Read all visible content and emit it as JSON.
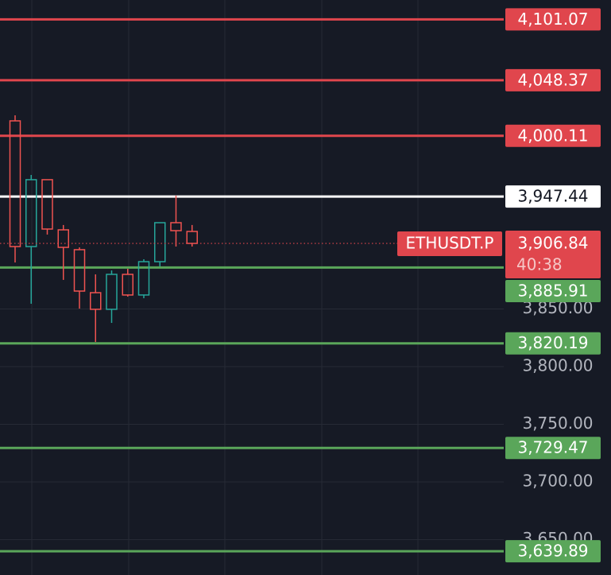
{
  "chart_data": {
    "type": "candlestick",
    "ylim": [
      3619.3,
      4117.9
    ],
    "yticks": [
      {
        "value": 3850,
        "label": "3,850.00"
      },
      {
        "value": 3800,
        "label": "3,800.00"
      },
      {
        "value": 3750,
        "label": "3,750.00"
      },
      {
        "value": 3700,
        "label": "3,700.00"
      },
      {
        "value": 3650,
        "label": "3,650.00"
      }
    ],
    "grid": true,
    "up_color": "#26a69a",
    "down_color": "#ef5350",
    "open": [
      4013.1,
      3904.1,
      3962.1,
      3918.6,
      3901.4,
      3864.1,
      3849.7,
      3880.0,
      3862.1,
      3891.0,
      3924.8,
      3917.2
    ],
    "high": [
      4017.9,
      3966.2,
      3962.1,
      3922.8,
      3903.4,
      3880.0,
      3883.4,
      3884.8,
      3893.1,
      3924.8,
      3948.3,
      3922.8
    ],
    "low": [
      3890.3,
      3854.5,
      3914.5,
      3875.2,
      3850.3,
      3821.4,
      3837.9,
      3860.7,
      3859.3,
      3886.9,
      3904.1,
      3904.1
    ],
    "close": [
      3904.1,
      3962.1,
      3919.3,
      3903.4,
      3865.5,
      3849.7,
      3880.0,
      3862.1,
      3891.0,
      3924.8,
      3917.9,
      3906.84
    ],
    "price_lines": [
      {
        "value": 4101.07,
        "label": "4,101.07",
        "color": "#e0464d"
      },
      {
        "value": 4048.37,
        "label": "4,048.37",
        "color": "#e0464d"
      },
      {
        "value": 4000.11,
        "label": "4,000.11",
        "color": "#e0464d"
      },
      {
        "value": 3947.44,
        "label": "3,947.44",
        "color": "#ffffff"
      },
      {
        "value": 3885.91,
        "label": "3,885.91",
        "color": "#5aa65a"
      },
      {
        "value": 3820.19,
        "label": "3,820.19",
        "color": "#5aa65a"
      },
      {
        "value": 3729.47,
        "label": "3,729.47",
        "color": "#5aa65a"
      },
      {
        "value": 3639.89,
        "label": "3,639.89",
        "color": "#5aa65a"
      }
    ],
    "last_price": {
      "symbol": "ETHUSDT.P",
      "value": 3906.84,
      "label": "3,906.84",
      "countdown": "40:38",
      "color": "#e0464d"
    }
  }
}
